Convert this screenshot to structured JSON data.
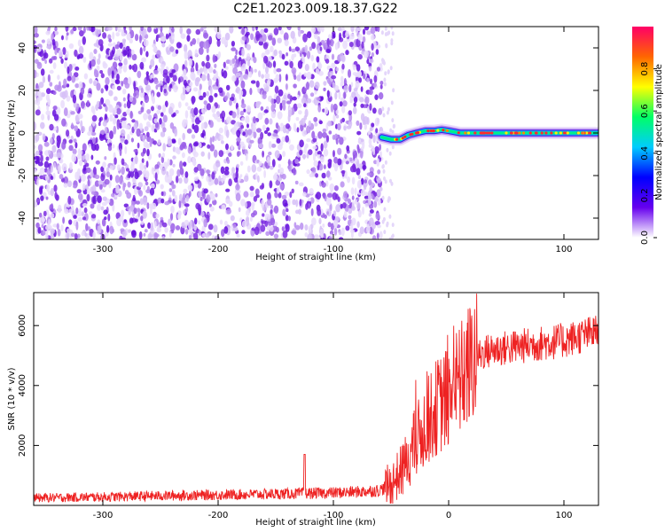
{
  "title": "C2E1.2023.009.18.37.G22",
  "chart_data": [
    {
      "type": "heatmap",
      "xlabel": "Height of straight line (km)",
      "ylabel": "Frequency (Hz)",
      "xlim": [
        -360,
        130
      ],
      "ylim": [
        -50,
        50
      ],
      "x_ticks": [
        -300,
        -200,
        -100,
        0,
        100
      ],
      "y_ticks": [
        -40,
        -20,
        0,
        20,
        40
      ],
      "noise_region_x": [
        -360,
        -58
      ],
      "tone_trace": [
        {
          "x": -58,
          "y": -2
        },
        {
          "x": -50,
          "y": -3
        },
        {
          "x": -42,
          "y": -3
        },
        {
          "x": -35,
          "y": -1
        },
        {
          "x": -28,
          "y": 0
        },
        {
          "x": -20,
          "y": 1
        },
        {
          "x": -12,
          "y": 1
        },
        {
          "x": -6,
          "y": 1.5
        },
        {
          "x": 0,
          "y": 1
        },
        {
          "x": 10,
          "y": 0
        },
        {
          "x": 40,
          "y": 0
        },
        {
          "x": 80,
          "y": 0
        },
        {
          "x": 130,
          "y": 0
        }
      ],
      "colorbar": {
        "label": "Normalized spectral amplitude",
        "range": [
          0,
          1
        ],
        "ticks": [
          "0.0",
          "0.2",
          "0.4",
          "0.6",
          "0.8"
        ],
        "colormap": [
          "#ffffff",
          "#6600ee",
          "#0000ff",
          "#00ccff",
          "#00ff66",
          "#ffff00",
          "#ff6600",
          "#ff0066"
        ]
      }
    },
    {
      "type": "line",
      "xlabel": "Height of straight line (km)",
      "ylabel": "SNR (10 * v/v)",
      "xlim": [
        -360,
        130
      ],
      "ylim": [
        0,
        7100
      ],
      "x_ticks": [
        -300,
        -200,
        -100,
        0,
        100
      ],
      "y_ticks": [
        2000,
        4000,
        6000
      ],
      "color": "#ee2222",
      "series": [
        {
          "points": [
            {
              "x": -360,
              "y": 250
            },
            {
              "x": -300,
              "y": 280
            },
            {
              "x": -250,
              "y": 320
            },
            {
              "x": -200,
              "y": 350
            },
            {
              "x": -150,
              "y": 380
            },
            {
              "x": -125,
              "y": 400
            },
            {
              "x": -100,
              "y": 420
            },
            {
              "x": -80,
              "y": 450
            },
            {
              "x": -60,
              "y": 500
            },
            {
              "x": -50,
              "y": 700
            },
            {
              "x": -40,
              "y": 1200
            },
            {
              "x": -30,
              "y": 2000
            },
            {
              "x": -20,
              "y": 2700
            },
            {
              "x": -10,
              "y": 3300
            },
            {
              "x": 0,
              "y": 3600
            },
            {
              "x": 10,
              "y": 4200
            },
            {
              "x": 20,
              "y": 4800
            },
            {
              "x": 30,
              "y": 5100
            },
            {
              "x": 40,
              "y": 5200
            },
            {
              "x": 60,
              "y": 5300
            },
            {
              "x": 80,
              "y": 5400
            },
            {
              "x": 100,
              "y": 5500
            },
            {
              "x": 115,
              "y": 5650
            },
            {
              "x": 130,
              "y": 5800
            }
          ]
        }
      ]
    }
  ]
}
